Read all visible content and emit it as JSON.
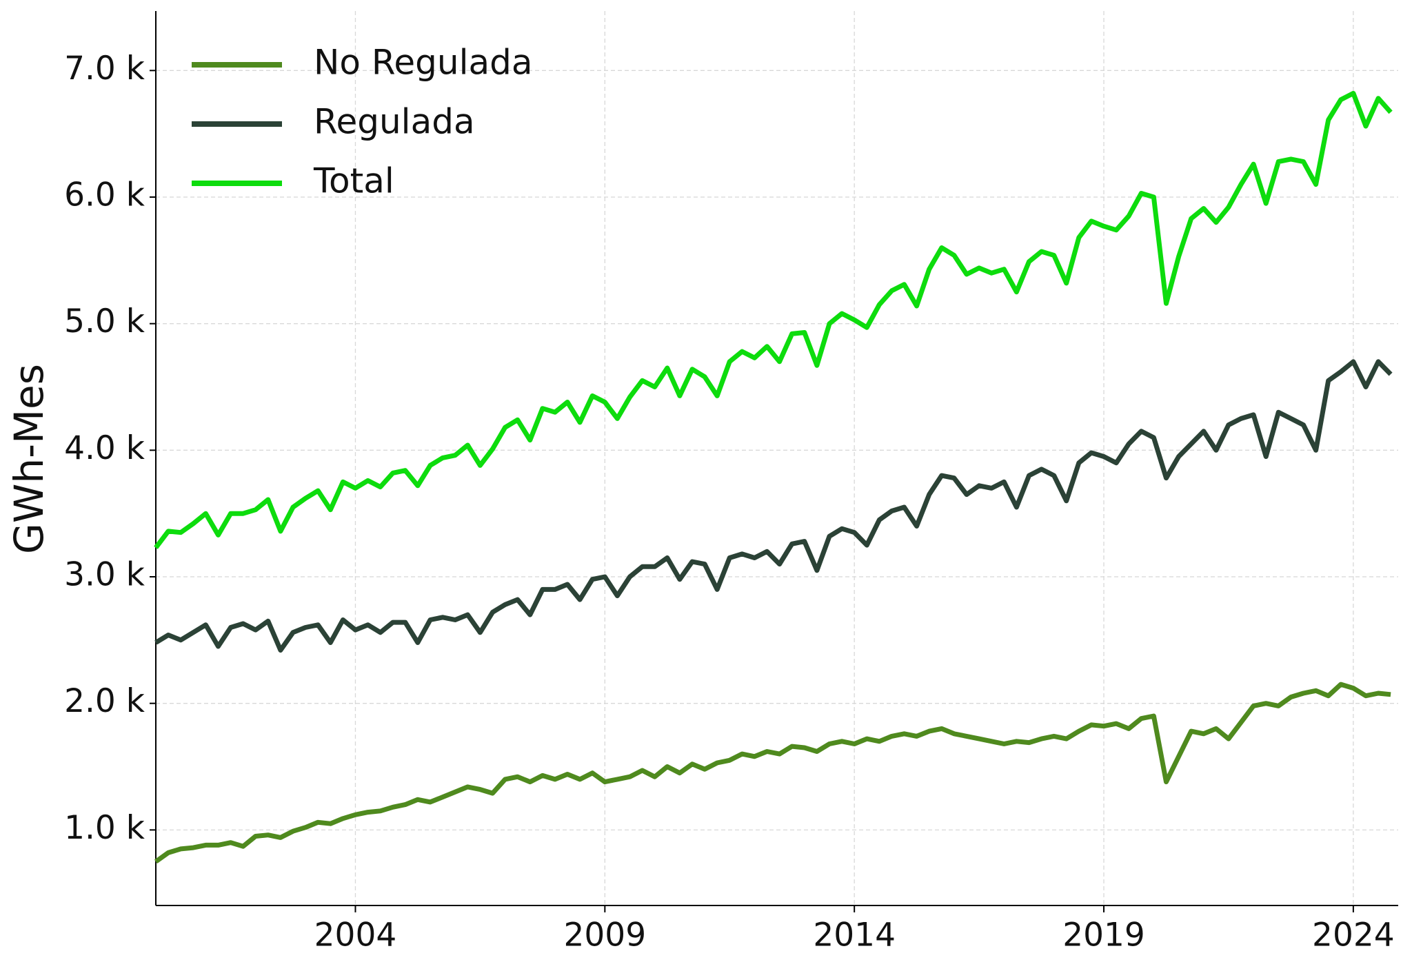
{
  "chart_data": {
    "type": "line",
    "y_label": "GWh-Mes",
    "x": [
      2000,
      2000.25,
      2000.5,
      2000.75,
      2001,
      2001.25,
      2001.5,
      2001.75,
      2002,
      2002.25,
      2002.5,
      2002.75,
      2003,
      2003.25,
      2003.5,
      2003.75,
      2004,
      2004.25,
      2004.5,
      2004.75,
      2005,
      2005.25,
      2005.5,
      2005.75,
      2006,
      2006.25,
      2006.5,
      2006.75,
      2007,
      2007.25,
      2007.5,
      2007.75,
      2008,
      2008.25,
      2008.5,
      2008.75,
      2009,
      2009.25,
      2009.5,
      2009.75,
      2010,
      2010.25,
      2010.5,
      2010.75,
      2011,
      2011.25,
      2011.5,
      2011.75,
      2012,
      2012.25,
      2012.5,
      2012.75,
      2013,
      2013.25,
      2013.5,
      2013.75,
      2014,
      2014.25,
      2014.5,
      2014.75,
      2015,
      2015.25,
      2015.5,
      2015.75,
      2016,
      2016.25,
      2016.5,
      2016.75,
      2017,
      2017.25,
      2017.5,
      2017.75,
      2018,
      2018.25,
      2018.5,
      2018.75,
      2019,
      2019.25,
      2019.5,
      2019.75,
      2020,
      2020.25,
      2020.5,
      2020.75,
      2021,
      2021.25,
      2021.5,
      2021.75,
      2022,
      2022.25,
      2022.5,
      2022.75,
      2023,
      2023.25,
      2023.5,
      2023.75,
      2024,
      2024.25,
      2024.5,
      2024.75
    ],
    "series": [
      {
        "name": "No Regulada",
        "color": "#4f8a1e",
        "values": [
          750,
          820,
          850,
          860,
          880,
          880,
          900,
          870,
          950,
          960,
          940,
          990,
          1020,
          1060,
          1050,
          1090,
          1120,
          1140,
          1150,
          1180,
          1200,
          1240,
          1220,
          1260,
          1300,
          1340,
          1320,
          1290,
          1400,
          1420,
          1380,
          1430,
          1400,
          1440,
          1400,
          1450,
          1380,
          1400,
          1420,
          1470,
          1420,
          1500,
          1450,
          1520,
          1480,
          1530,
          1550,
          1600,
          1580,
          1620,
          1600,
          1660,
          1650,
          1620,
          1680,
          1700,
          1680,
          1720,
          1700,
          1740,
          1760,
          1740,
          1780,
          1800,
          1760,
          1740,
          1720,
          1700,
          1680,
          1700,
          1690,
          1720,
          1740,
          1720,
          1780,
          1830,
          1820,
          1840,
          1800,
          1880,
          1900,
          1380,
          1580,
          1780,
          1760,
          1800,
          1720,
          1850,
          1980,
          2000,
          1980,
          2050,
          2080,
          2100,
          2060,
          2150,
          2120,
          2060,
          2080,
          2070
        ]
      },
      {
        "name": "Regulada",
        "color": "#2b4236",
        "values": [
          2480,
          2540,
          2500,
          2560,
          2620,
          2450,
          2600,
          2630,
          2580,
          2650,
          2420,
          2560,
          2600,
          2620,
          2480,
          2660,
          2580,
          2620,
          2560,
          2640,
          2640,
          2480,
          2660,
          2680,
          2660,
          2700,
          2560,
          2720,
          2780,
          2820,
          2700,
          2900,
          2900,
          2940,
          2820,
          2980,
          3000,
          2850,
          3000,
          3080,
          3080,
          3150,
          2980,
          3120,
          3100,
          2900,
          3150,
          3180,
          3150,
          3200,
          3100,
          3260,
          3280,
          3050,
          3320,
          3380,
          3350,
          3250,
          3450,
          3520,
          3550,
          3400,
          3650,
          3800,
          3780,
          3650,
          3720,
          3700,
          3750,
          3550,
          3800,
          3850,
          3800,
          3600,
          3900,
          3980,
          3950,
          3900,
          4050,
          4150,
          4100,
          3780,
          3950,
          4050,
          4150,
          4000,
          4200,
          4250,
          4280,
          3950,
          4300,
          4250,
          4200,
          4000,
          4550,
          4620,
          4700,
          4500,
          4700,
          4600
        ]
      },
      {
        "name": "Total",
        "color": "#0ddc0d",
        "values": [
          3230,
          3360,
          3350,
          3420,
          3500,
          3330,
          3500,
          3500,
          3530,
          3610,
          3360,
          3550,
          3620,
          3680,
          3530,
          3750,
          3700,
          3760,
          3710,
          3820,
          3840,
          3720,
          3880,
          3940,
          3960,
          4040,
          3880,
          4010,
          4180,
          4240,
          4080,
          4330,
          4300,
          4380,
          4220,
          4430,
          4380,
          4250,
          4420,
          4550,
          4500,
          4650,
          4430,
          4640,
          4580,
          4430,
          4700,
          4780,
          4730,
          4820,
          4700,
          4920,
          4930,
          4670,
          5000,
          5080,
          5030,
          4970,
          5150,
          5260,
          5310,
          5140,
          5430,
          5600,
          5540,
          5390,
          5440,
          5400,
          5430,
          5250,
          5490,
          5570,
          5540,
          5320,
          5680,
          5810,
          5770,
          5740,
          5850,
          6030,
          6000,
          5160,
          5530,
          5830,
          5910,
          5800,
          5920,
          6100,
          6260,
          5950,
          6280,
          6300,
          6280,
          6100,
          6610,
          6770,
          6820,
          6560,
          6780,
          6670
        ]
      }
    ],
    "xlim": [
      2000,
      2024.9
    ],
    "xticks": [
      2004,
      2009,
      2014,
      2019,
      2024
    ],
    "ylim": [
      403,
      7470
    ],
    "yticks": [
      {
        "value": 1000,
        "label": "1.0 k"
      },
      {
        "value": 2000,
        "label": "2.0 k"
      },
      {
        "value": 3000,
        "label": "3.0 k"
      },
      {
        "value": 4000,
        "label": "4.0 k"
      },
      {
        "value": 5000,
        "label": "5.0 k"
      },
      {
        "value": 6000,
        "label": "6.0 k"
      },
      {
        "value": 7000,
        "label": "7.0 k"
      }
    ],
    "grid": true,
    "legend": "upper left"
  }
}
